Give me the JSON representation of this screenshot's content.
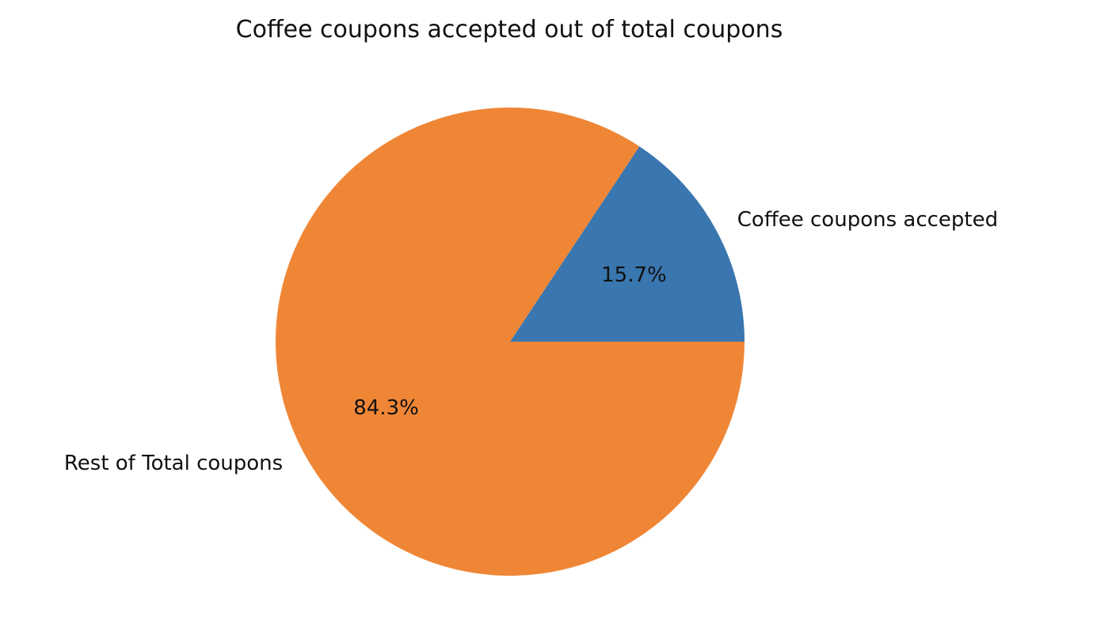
{
  "chart_data": {
    "type": "pie",
    "title": "Coffee coupons accepted out of total coupons",
    "slices": [
      {
        "label": "Coffee coupons accepted",
        "value": 15.7,
        "pct_label": "15.7%",
        "color": "#3a76af"
      },
      {
        "label": "Rest of Total coupons",
        "value": 84.3,
        "pct_label": "84.3%",
        "color": "#ef8636"
      }
    ],
    "start_angle_deg": 0,
    "direction": "counterclockwise",
    "legend": "none"
  }
}
